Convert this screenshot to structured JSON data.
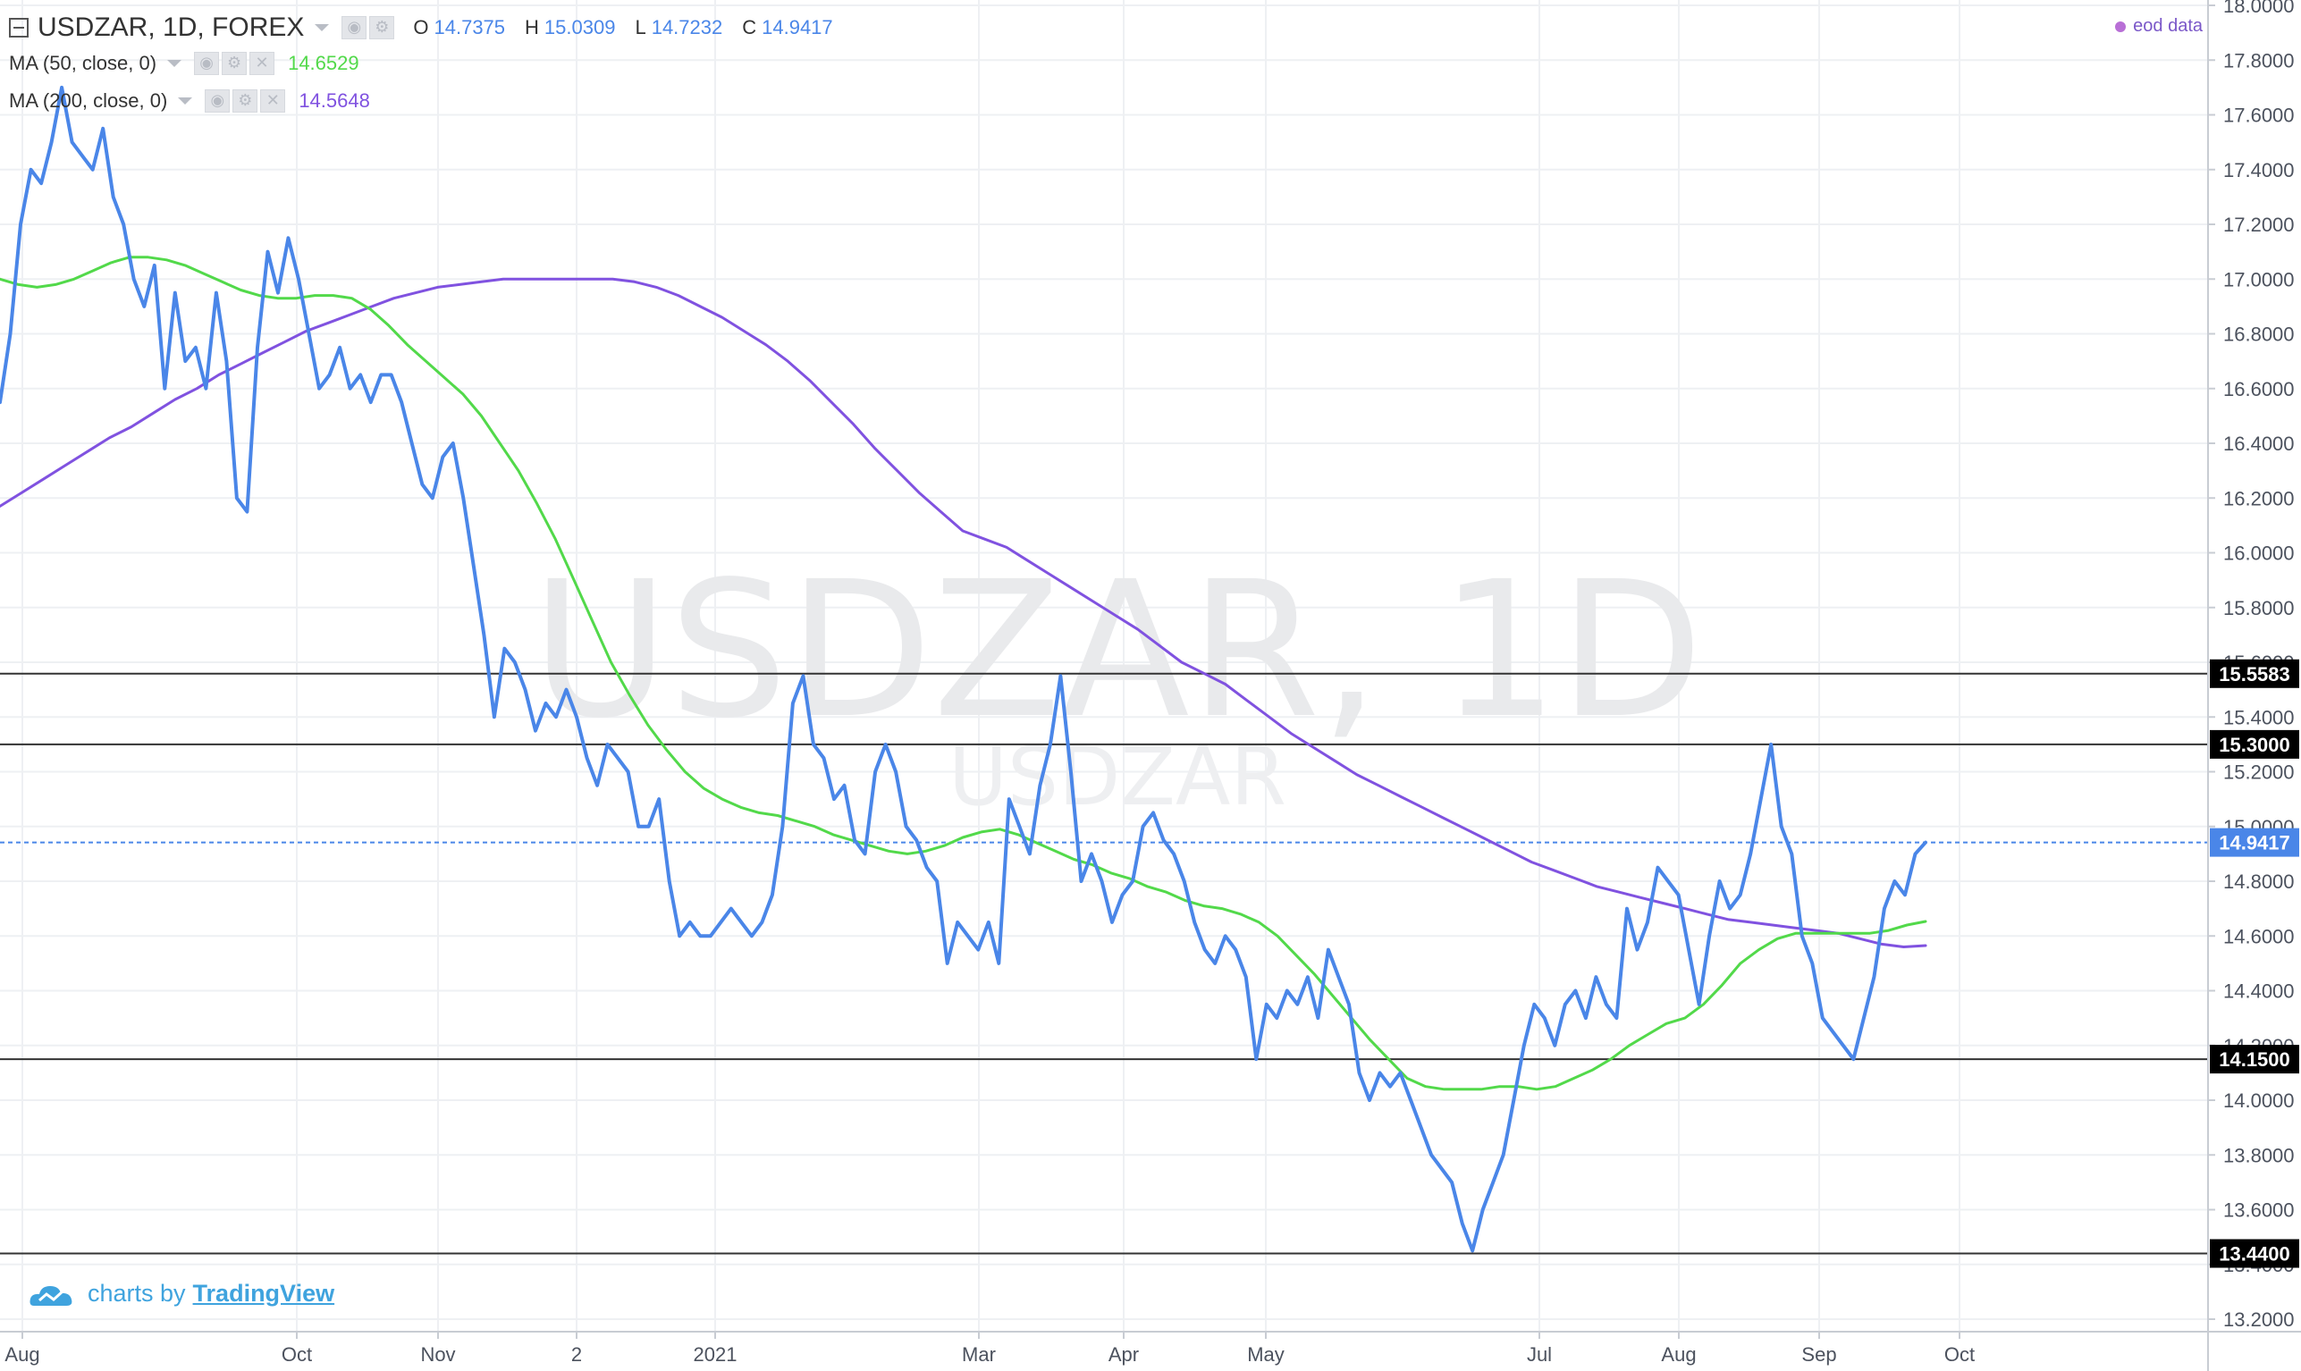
{
  "header": {
    "symbol_line": "USDZAR, 1D, FOREX",
    "ohlc": [
      {
        "label": "O",
        "value": "14.7375"
      },
      {
        "label": "H",
        "value": "15.0309"
      },
      {
        "label": "L",
        "value": "14.7232"
      },
      {
        "label": "C",
        "value": "14.9417"
      }
    ],
    "indicators": [
      {
        "name": "MA (50, close, 0)",
        "value": "14.6529",
        "color": "#52d94a"
      },
      {
        "name": "MA (200, close, 0)",
        "value": "14.5648",
        "color": "#8052e0"
      }
    ],
    "data_source": "eod data"
  },
  "watermark": {
    "main": "USDZAR, 1D",
    "sub": "USDZAR"
  },
  "branding": {
    "prefix": "charts by",
    "name": "TradingView"
  },
  "colors": {
    "price": "#4a86e8",
    "ma50": "#52d94a",
    "ma200": "#8052e0",
    "level": "#222222",
    "current": "#4a86e8"
  },
  "chart_data": {
    "type": "line",
    "title": "USDZAR, 1D, FOREX",
    "ylim": [
      13.1,
      18.0
    ],
    "y_ticks": [
      "18.0000",
      "17.8000",
      "17.6000",
      "17.4000",
      "17.2000",
      "17.0000",
      "16.8000",
      "16.6000",
      "16.4000",
      "16.2000",
      "16.0000",
      "15.8000",
      "15.6000",
      "15.4000",
      "15.2000",
      "15.0000",
      "14.8000",
      "14.6000",
      "14.4000",
      "14.2000",
      "14.0000",
      "13.8000",
      "13.6000",
      "13.4000",
      "13.2000"
    ],
    "x_ticks": [
      "Aug",
      "Oct",
      "Nov",
      "2",
      "2021",
      "Mar",
      "Apr",
      "May",
      "Jul",
      "Aug",
      "Sep",
      "Oct"
    ],
    "horizontal_levels": [
      {
        "value": 15.5583,
        "label": "15.5583"
      },
      {
        "value": 15.3,
        "label": "15.3000"
      },
      {
        "value": 14.15,
        "label": "14.1500"
      },
      {
        "value": 13.44,
        "label": "13.4400"
      }
    ],
    "current_price": {
      "value": 14.9417,
      "label": "14.9417"
    },
    "series": [
      {
        "name": "USDZAR",
        "values": [
          16.55,
          16.8,
          17.2,
          17.4,
          17.35,
          17.5,
          17.7,
          17.5,
          17.45,
          17.4,
          17.55,
          17.3,
          17.2,
          17.0,
          16.9,
          17.05,
          16.6,
          16.95,
          16.7,
          16.75,
          16.6,
          16.95,
          16.7,
          16.2,
          16.15,
          16.75,
          17.1,
          16.95,
          17.15,
          17.0,
          16.8,
          16.6,
          16.65,
          16.75,
          16.6,
          16.65,
          16.55,
          16.65,
          16.65,
          16.55,
          16.4,
          16.25,
          16.2,
          16.35,
          16.4,
          16.2,
          15.95,
          15.7,
          15.4,
          15.65,
          15.6,
          15.5,
          15.35,
          15.45,
          15.4,
          15.5,
          15.4,
          15.25,
          15.15,
          15.3,
          15.25,
          15.2,
          15.0,
          15.0,
          15.1,
          14.8,
          14.6,
          14.65,
          14.6,
          14.6,
          14.65,
          14.7,
          14.65,
          14.6,
          14.65,
          14.75,
          15.0,
          15.45,
          15.55,
          15.3,
          15.25,
          15.1,
          15.15,
          14.95,
          14.9,
          15.2,
          15.3,
          15.2,
          15.0,
          14.95,
          14.85,
          14.8,
          14.5,
          14.65,
          14.6,
          14.55,
          14.65,
          14.5,
          15.1,
          15.0,
          14.9,
          15.15,
          15.3,
          15.55,
          15.2,
          14.8,
          14.9,
          14.8,
          14.65,
          14.75,
          14.8,
          15.0,
          15.05,
          14.95,
          14.9,
          14.8,
          14.65,
          14.55,
          14.5,
          14.6,
          14.55,
          14.45,
          14.15,
          14.35,
          14.3,
          14.4,
          14.35,
          14.45,
          14.3,
          14.55,
          14.45,
          14.35,
          14.1,
          14.0,
          14.1,
          14.05,
          14.1,
          14.0,
          13.9,
          13.8,
          13.75,
          13.7,
          13.55,
          13.45,
          13.6,
          13.7,
          13.8,
          14.0,
          14.2,
          14.35,
          14.3,
          14.2,
          14.35,
          14.4,
          14.3,
          14.45,
          14.35,
          14.3,
          14.7,
          14.55,
          14.65,
          14.85,
          14.8,
          14.75,
          14.55,
          14.35,
          14.6,
          14.8,
          14.7,
          14.75,
          14.9,
          15.1,
          15.3,
          15.0,
          14.9,
          14.6,
          14.5,
          14.3,
          14.25,
          14.2,
          14.15,
          14.3,
          14.45,
          14.7,
          14.8,
          14.75,
          14.9,
          14.9417
        ]
      },
      {
        "name": "MA (50, close, 0)",
        "values": [
          17.0,
          16.98,
          16.97,
          16.98,
          17.0,
          17.03,
          17.06,
          17.08,
          17.08,
          17.07,
          17.05,
          17.02,
          16.99,
          16.96,
          16.94,
          16.93,
          16.93,
          16.94,
          16.94,
          16.93,
          16.89,
          16.83,
          16.76,
          16.7,
          16.64,
          16.58,
          16.5,
          16.4,
          16.3,
          16.18,
          16.05,
          15.9,
          15.75,
          15.6,
          15.48,
          15.37,
          15.28,
          15.2,
          15.14,
          15.1,
          15.07,
          15.05,
          15.04,
          15.02,
          15.0,
          14.97,
          14.95,
          14.93,
          14.91,
          14.9,
          14.91,
          14.93,
          14.96,
          14.98,
          14.99,
          14.97,
          14.94,
          14.91,
          14.88,
          14.86,
          14.83,
          14.81,
          14.78,
          14.76,
          14.73,
          14.71,
          14.7,
          14.68,
          14.65,
          14.6,
          14.53,
          14.46,
          14.38,
          14.3,
          14.22,
          14.15,
          14.08,
          14.05,
          14.04,
          14.04,
          14.04,
          14.05,
          14.05,
          14.04,
          14.05,
          14.08,
          14.11,
          14.15,
          14.2,
          14.24,
          14.28,
          14.3,
          14.35,
          14.42,
          14.5,
          14.55,
          14.59,
          14.61,
          14.61,
          14.61,
          14.61,
          14.61,
          14.62,
          14.64,
          14.6529
        ]
      },
      {
        "name": "MA (200, close, 0)",
        "values": [
          16.17,
          16.22,
          16.27,
          16.32,
          16.37,
          16.42,
          16.46,
          16.51,
          16.56,
          16.6,
          16.65,
          16.69,
          16.73,
          16.77,
          16.81,
          16.84,
          16.87,
          16.9,
          16.93,
          16.95,
          16.97,
          16.98,
          16.99,
          17.0,
          17.0,
          17.0,
          17.0,
          17.0,
          17.0,
          16.99,
          16.97,
          16.94,
          16.9,
          16.86,
          16.81,
          16.76,
          16.7,
          16.63,
          16.55,
          16.47,
          16.38,
          16.3,
          16.22,
          16.15,
          16.08,
          16.05,
          16.02,
          15.97,
          15.92,
          15.87,
          15.82,
          15.77,
          15.72,
          15.66,
          15.6,
          15.56,
          15.52,
          15.46,
          15.4,
          15.34,
          15.29,
          15.24,
          15.19,
          15.15,
          15.11,
          15.07,
          15.03,
          14.99,
          14.95,
          14.91,
          14.87,
          14.84,
          14.81,
          14.78,
          14.76,
          14.74,
          14.72,
          14.7,
          14.68,
          14.66,
          14.65,
          14.64,
          14.63,
          14.62,
          14.61,
          14.59,
          14.57,
          14.56,
          14.5648
        ]
      }
    ]
  }
}
